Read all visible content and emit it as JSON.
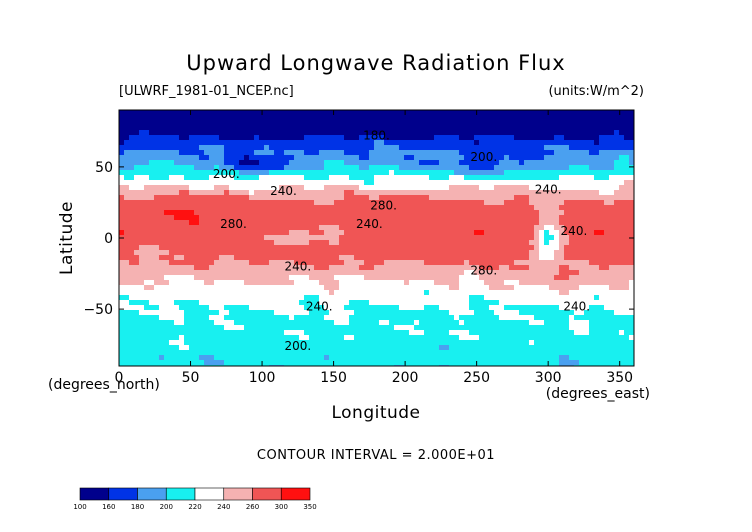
{
  "chart_data": {
    "type": "heatmap",
    "title": "Upward Longwave Radiation Flux",
    "file_label": "[ULWRF_1981-01_NCEP.nc]",
    "units_label": "(units:W/m^2)",
    "xlabel": "Longitude",
    "ylabel": "Latitude",
    "x_unit_label": "(degrees_east)",
    "y_unit_label": "(degrees_north)",
    "xlim": [
      0,
      360
    ],
    "ylim": [
      -90,
      90
    ],
    "x_ticks": [
      0,
      50,
      100,
      150,
      200,
      250,
      300,
      350
    ],
    "y_ticks": [
      -50,
      0,
      50
    ],
    "contour_interval_text": "CONTOUR INTERVAL = 2.000E+01",
    "colorbar": {
      "levels": [
        100,
        160,
        180,
        200,
        220,
        240,
        260,
        300,
        350
      ],
      "bins": [
        {
          "from": 100,
          "to": 160,
          "color": "#00008c"
        },
        {
          "from": 160,
          "to": 180,
          "color": "#0033e6"
        },
        {
          "from": 180,
          "to": 200,
          "color": "#4aa0f0"
        },
        {
          "from": 200,
          "to": 220,
          "color": "#18f0f0"
        },
        {
          "from": 220,
          "to": 240,
          "color": "#ffffff"
        },
        {
          "from": 240,
          "to": 260,
          "color": "#f5b2b2"
        },
        {
          "from": 260,
          "to": 300,
          "color": "#f05555"
        },
        {
          "from": 300,
          "to": 350,
          "color": "#ff1010"
        }
      ]
    },
    "contour_labels": [
      {
        "text": "180.",
        "lon": 180,
        "lat": 72
      },
      {
        "text": "200.",
        "lon": 255,
        "lat": 57
      },
      {
        "text": "200.",
        "lon": 75,
        "lat": 45
      },
      {
        "text": "240.",
        "lon": 115,
        "lat": 33
      },
      {
        "text": "240.",
        "lon": 300,
        "lat": 34
      },
      {
        "text": "280.",
        "lon": 185,
        "lat": 23
      },
      {
        "text": "280.",
        "lon": 80,
        "lat": 10
      },
      {
        "text": "240.",
        "lon": 175,
        "lat": 10
      },
      {
        "text": "240.",
        "lon": 318,
        "lat": 5
      },
      {
        "text": "240.",
        "lon": 125,
        "lat": -20
      },
      {
        "text": "280.",
        "lon": 255,
        "lat": -23
      },
      {
        "text": "240.",
        "lon": 140,
        "lat": -48
      },
      {
        "text": "240.",
        "lon": 320,
        "lat": -48
      },
      {
        "text": "200.",
        "lon": 125,
        "lat": -76
      }
    ]
  }
}
